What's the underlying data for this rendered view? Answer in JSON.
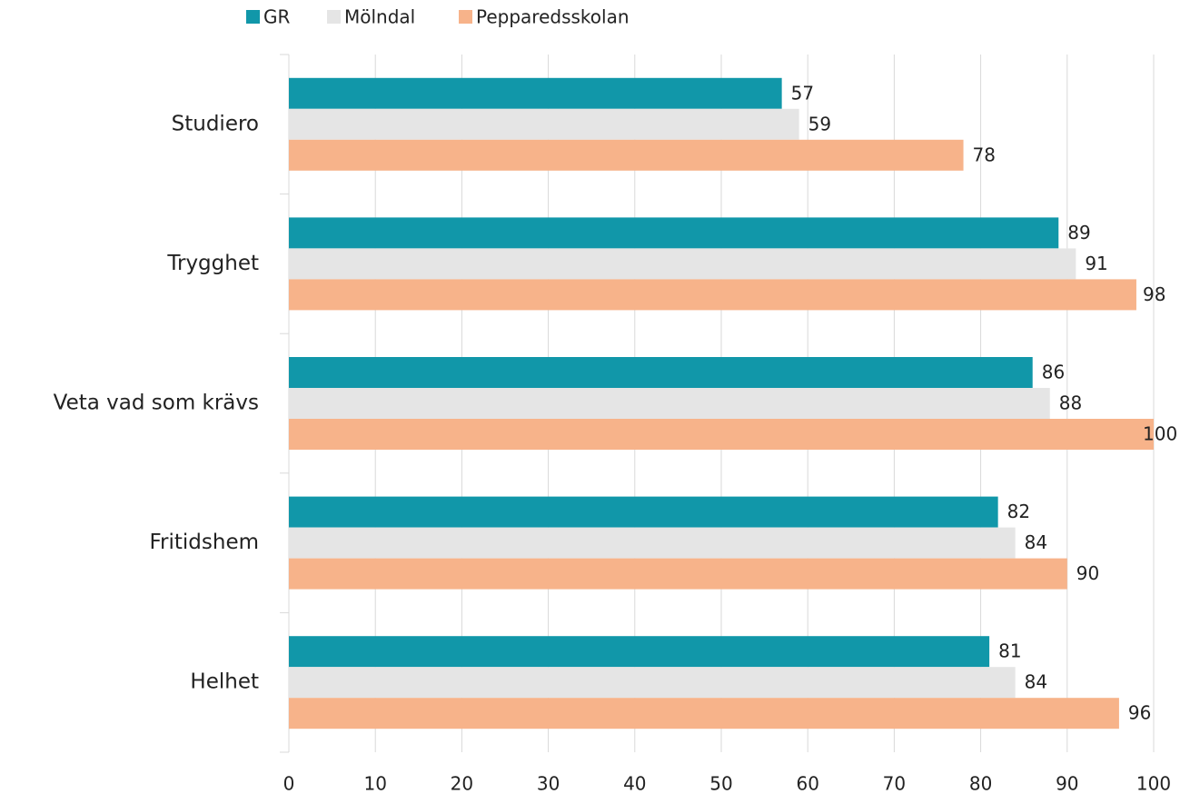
{
  "chart_data": {
    "type": "bar",
    "orientation": "horizontal",
    "categories": [
      "Studiero",
      "Trygghet",
      "Veta vad som krävs",
      "Fritidshem",
      "Helhet"
    ],
    "series": [
      {
        "name": "GR",
        "color": "#1197a9",
        "values": [
          57,
          89,
          86,
          82,
          81
        ]
      },
      {
        "name": "Mölndal",
        "color": "#e5e5e5",
        "values": [
          59,
          91,
          88,
          84,
          84
        ]
      },
      {
        "name": "Pepparedsskolan",
        "color": "#f7b38a",
        "values": [
          78,
          98,
          100,
          90,
          96
        ]
      }
    ],
    "xlim": [
      0,
      100
    ],
    "xticks": [
      0,
      10,
      20,
      30,
      40,
      50,
      60,
      70,
      80,
      90,
      100
    ],
    "grid": true,
    "legend": "top"
  }
}
